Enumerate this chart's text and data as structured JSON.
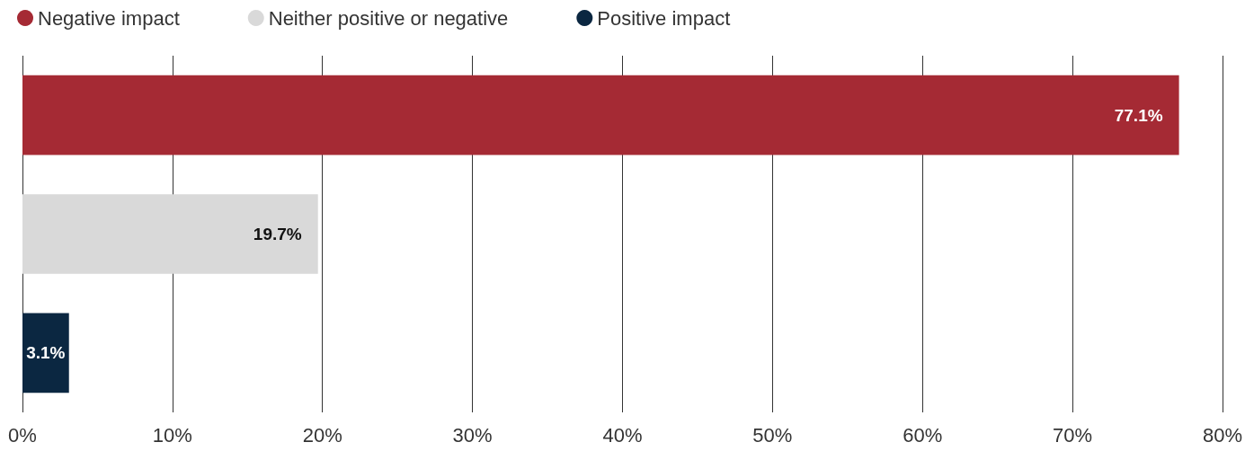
{
  "chart_data": {
    "type": "bar",
    "orientation": "horizontal",
    "categories": [
      null,
      null,
      null
    ],
    "series": [
      {
        "name": "Negative impact",
        "color": "#a52a34",
        "values": [
          77.1,
          null,
          null
        ],
        "value_labels": [
          "77.1%",
          null,
          null
        ]
      },
      {
        "name": "Neither positive or negative",
        "color": "#d9d9d9",
        "values": [
          null,
          19.7,
          null
        ],
        "value_labels": [
          null,
          "19.7%",
          null
        ]
      },
      {
        "name": "Positive impact",
        "color": "#0b2741",
        "values": [
          null,
          null,
          3.1
        ],
        "value_labels": [
          null,
          null,
          "3.1%"
        ]
      }
    ],
    "xlim": [
      0,
      80
    ],
    "xticks": [
      {
        "value": 0,
        "label": "0%"
      },
      {
        "value": 10,
        "label": "10%"
      },
      {
        "value": 20,
        "label": "20%"
      },
      {
        "value": 30,
        "label": "30%"
      },
      {
        "value": 40,
        "label": "40%"
      },
      {
        "value": 50,
        "label": "50%"
      },
      {
        "value": 60,
        "label": "60%"
      },
      {
        "value": 70,
        "label": "70%"
      },
      {
        "value": 80,
        "label": "80%"
      }
    ],
    "grid": "x",
    "legend": "top left",
    "tick_labels": "x"
  }
}
